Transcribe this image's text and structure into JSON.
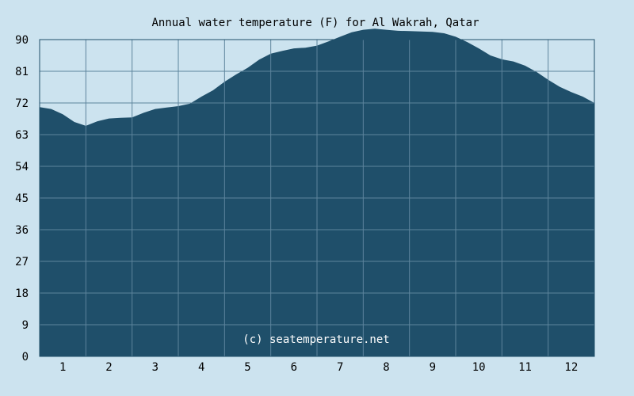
{
  "chart_data": {
    "type": "area",
    "title": "Annual water temperature (F) for Al Wakrah, Qatar",
    "watermark": "(c) seatemperature.net",
    "xlabel": "",
    "ylabel": "",
    "x_ticks": [
      "1",
      "2",
      "3",
      "4",
      "5",
      "6",
      "7",
      "8",
      "9",
      "10",
      "11",
      "12"
    ],
    "y_ticks": [
      "0",
      "9",
      "18",
      "27",
      "36",
      "45",
      "54",
      "63",
      "72",
      "81",
      "90"
    ],
    "xlim": [
      0.5,
      12.5
    ],
    "ylim": [
      0,
      90
    ],
    "grid": true,
    "colors": {
      "background": "#cce3ef",
      "fill": "#1f4f6a",
      "grid": "#5d849c",
      "border": "#1f4f6a"
    },
    "series": [
      {
        "x": [
          0.5,
          0.75,
          1.0,
          1.25,
          1.5,
          1.75,
          2.0,
          2.25,
          2.5,
          2.75,
          3.0,
          3.25,
          3.5,
          3.75,
          4.0,
          4.25,
          4.5,
          4.75,
          5.0,
          5.25,
          5.5,
          5.75,
          6.0,
          6.25,
          6.5,
          6.75,
          7.0,
          7.25,
          7.5,
          7.75,
          8.0,
          8.25,
          8.5,
          8.75,
          9.0,
          9.25,
          9.5,
          9.75,
          10.0,
          10.25,
          10.5,
          10.75,
          11.0,
          11.25,
          11.5,
          11.75,
          12.0,
          12.25,
          12.5
        ],
        "y": [
          70.8,
          70.3,
          68.8,
          66.6,
          65.5,
          66.8,
          67.6,
          67.8,
          67.9,
          69.2,
          70.3,
          70.7,
          71.1,
          71.8,
          73.8,
          75.6,
          78.0,
          80.1,
          82.0,
          84.3,
          86.0,
          86.8,
          87.5,
          87.7,
          88.3,
          89.5,
          90.8,
          92.1,
          92.8,
          93.1,
          92.8,
          92.5,
          92.4,
          92.3,
          92.2,
          91.8,
          90.8,
          89.3,
          87.5,
          85.5,
          84.4,
          83.8,
          82.6,
          80.8,
          78.6,
          76.6,
          75.1,
          73.8,
          72.0
        ]
      }
    ]
  }
}
